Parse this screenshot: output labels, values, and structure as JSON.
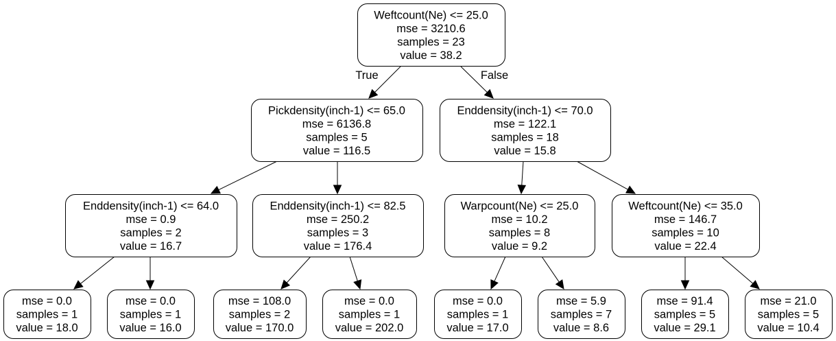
{
  "tree": {
    "edge_labels": {
      "true_label": "True",
      "false_label": "False"
    },
    "nodes": {
      "root": [
        "Weftcount(Ne) <= 25.0",
        "mse = 3210.6",
        "samples = 23",
        "value = 38.2"
      ],
      "n_l": [
        "Pickdensity(inch-1) <= 65.0",
        "mse = 6136.8",
        "samples = 5",
        "value = 116.5"
      ],
      "n_r": [
        "Enddensity(inch-1) <= 70.0",
        "mse = 122.1",
        "samples = 18",
        "value = 15.8"
      ],
      "n_ll": [
        "Enddensity(inch-1) <= 64.0",
        "mse = 0.9",
        "samples = 2",
        "value = 16.7"
      ],
      "n_lr": [
        "Enddensity(inch-1) <= 82.5",
        "mse = 250.2",
        "samples = 3",
        "value = 176.4"
      ],
      "n_rl": [
        "Warpcount(Ne) <= 25.0",
        "mse = 10.2",
        "samples = 8",
        "value = 9.2"
      ],
      "n_rr": [
        "Weftcount(Ne) <= 35.0",
        "mse = 146.7",
        "samples = 10",
        "value = 22.4"
      ],
      "leaf_1": [
        "mse = 0.0",
        "samples = 1",
        "value = 18.0"
      ],
      "leaf_2": [
        "mse = 0.0",
        "samples = 1",
        "value = 16.0"
      ],
      "leaf_3": [
        "mse = 108.0",
        "samples = 2",
        "value = 170.0"
      ],
      "leaf_4": [
        "mse = 0.0",
        "samples = 1",
        "value = 202.0"
      ],
      "leaf_5": [
        "mse = 0.0",
        "samples = 1",
        "value = 17.0"
      ],
      "leaf_6": [
        "mse = 5.9",
        "samples = 7",
        "value = 8.6"
      ],
      "leaf_7": [
        "mse = 91.4",
        "samples = 5",
        "value = 29.1"
      ],
      "leaf_8": [
        "mse = 21.0",
        "samples = 5",
        "value = 10.4"
      ]
    }
  }
}
